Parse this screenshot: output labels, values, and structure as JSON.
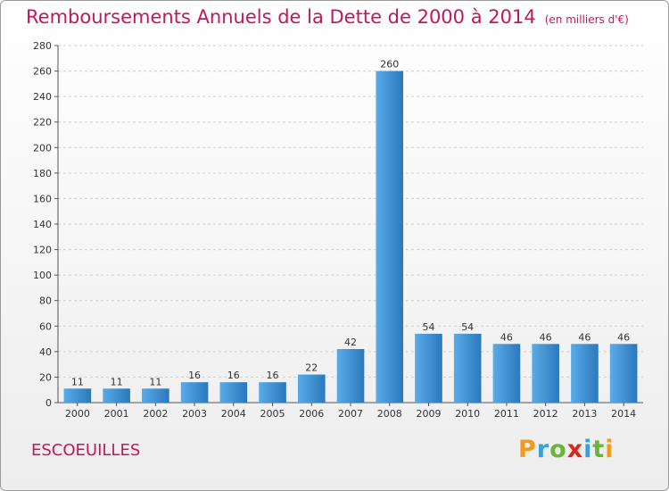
{
  "header": {
    "title": "Remboursements Annuels de la Dette de 2000 à 2014",
    "subtitle": "(en milliers d'€)"
  },
  "commune": "ESCOEUILLES",
  "brand": [
    "P",
    "r",
    "o",
    "x",
    "i",
    "t",
    "i"
  ],
  "chart_data": {
    "type": "bar",
    "title": "Remboursements Annuels de la Dette de 2000 à 2014",
    "subtitle": "(en milliers d'€)",
    "categories": [
      "2000",
      "2001",
      "2002",
      "2003",
      "2004",
      "2005",
      "2006",
      "2007",
      "2008",
      "2009",
      "2010",
      "2011",
      "2012",
      "2013",
      "2014"
    ],
    "values": [
      11,
      11,
      11,
      16,
      16,
      16,
      22,
      42,
      260,
      54,
      54,
      46,
      46,
      46,
      46
    ],
    "data_labels": [
      "11",
      "11",
      "11",
      "16",
      "16",
      "16",
      "22",
      "42",
      "260",
      "54",
      "54",
      "46",
      "46",
      "46",
      "46"
    ],
    "ylim": [
      0,
      280
    ],
    "yticks": [
      0,
      20,
      40,
      60,
      80,
      100,
      120,
      140,
      160,
      180,
      200,
      220,
      240,
      260,
      280
    ],
    "grid": "horizontal dashed",
    "bar_color": "#3a8fd6",
    "bar_color_light": "#5aabe8",
    "bar_color_dark": "#2b78bd"
  }
}
